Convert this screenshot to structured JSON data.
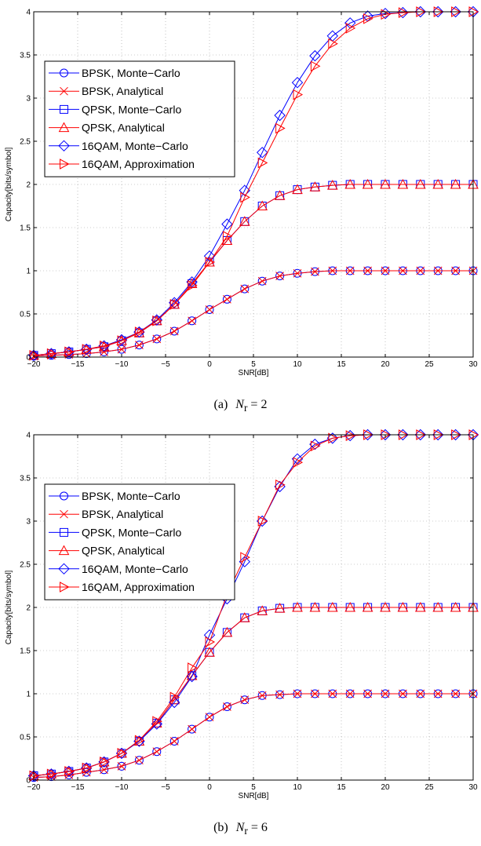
{
  "colors": {
    "blue": "#0000ff",
    "red": "#ff0000",
    "grid": "#9a9a9a"
  },
  "chart_data": [
    {
      "type": "line",
      "caption_label": "(a)",
      "caption_eq": "N",
      "caption_sub": "r",
      "caption_rhs": " = 2",
      "xlabel": "SNR[dB]",
      "ylabel": "Capacity[bits/symbol]",
      "xlim": [
        -20,
        30
      ],
      "ylim": [
        0,
        4
      ],
      "xticks": [
        -20,
        -15,
        -10,
        -5,
        0,
        5,
        10,
        15,
        20,
        25,
        30
      ],
      "yticks": [
        0,
        0.5,
        1,
        1.5,
        2,
        2.5,
        3,
        3.5,
        4
      ],
      "grid": true,
      "legend_position": "upper-left",
      "x": [
        -20,
        -18,
        -16,
        -14,
        -12,
        -10,
        -8,
        -6,
        -4,
        -2,
        0,
        2,
        4,
        6,
        8,
        10,
        12,
        14,
        16,
        18,
        20,
        22,
        24,
        26,
        28,
        30
      ],
      "series": [
        {
          "name": "BPSK, Monte−Carlo",
          "color": "blue",
          "marker": "circle",
          "values": [
            0.01,
            0.02,
            0.03,
            0.04,
            0.06,
            0.09,
            0.14,
            0.21,
            0.3,
            0.42,
            0.55,
            0.67,
            0.79,
            0.88,
            0.94,
            0.97,
            0.99,
            1.0,
            1.0,
            1.0,
            1.0,
            1.0,
            1.0,
            1.0,
            1.0,
            1.0
          ]
        },
        {
          "name": "BPSK, Analytical",
          "color": "red",
          "marker": "x",
          "values": [
            0.01,
            0.02,
            0.03,
            0.04,
            0.06,
            0.09,
            0.14,
            0.21,
            0.3,
            0.42,
            0.55,
            0.67,
            0.79,
            0.88,
            0.94,
            0.97,
            0.99,
            1.0,
            1.0,
            1.0,
            1.0,
            1.0,
            1.0,
            1.0,
            1.0,
            1.0
          ]
        },
        {
          "name": "QPSK, Monte−Carlo",
          "color": "blue",
          "marker": "square",
          "values": [
            0.02,
            0.04,
            0.06,
            0.09,
            0.12,
            0.19,
            0.28,
            0.42,
            0.61,
            0.85,
            1.1,
            1.35,
            1.57,
            1.75,
            1.87,
            1.94,
            1.97,
            1.99,
            2.0,
            2.0,
            2.0,
            2.0,
            2.0,
            2.0,
            2.0,
            2.0
          ]
        },
        {
          "name": "QPSK, Analytical",
          "color": "red",
          "marker": "triangle-up",
          "values": [
            0.02,
            0.04,
            0.06,
            0.09,
            0.12,
            0.19,
            0.28,
            0.42,
            0.61,
            0.85,
            1.1,
            1.35,
            1.57,
            1.75,
            1.87,
            1.94,
            1.97,
            1.99,
            2.0,
            2.0,
            2.0,
            2.0,
            2.0,
            2.0,
            2.0,
            2.0
          ]
        },
        {
          "name": "16QAM, Monte−Carlo",
          "color": "blue",
          "marker": "diamond",
          "values": [
            0.02,
            0.04,
            0.06,
            0.09,
            0.13,
            0.2,
            0.29,
            0.43,
            0.63,
            0.87,
            1.17,
            1.54,
            1.93,
            2.37,
            2.8,
            3.18,
            3.49,
            3.72,
            3.87,
            3.95,
            3.98,
            3.99,
            4.0,
            4.0,
            4.0,
            4.0
          ]
        },
        {
          "name": "16QAM, Approximation",
          "color": "red",
          "marker": "triangle-right",
          "values": [
            0.02,
            0.04,
            0.06,
            0.09,
            0.13,
            0.19,
            0.29,
            0.42,
            0.61,
            0.83,
            1.1,
            1.4,
            1.85,
            2.25,
            2.65,
            3.04,
            3.37,
            3.63,
            3.81,
            3.92,
            3.97,
            3.99,
            4.0,
            4.0,
            4.0,
            4.0
          ]
        }
      ]
    },
    {
      "type": "line",
      "caption_label": "(b)",
      "caption_eq": "N",
      "caption_sub": "r",
      "caption_rhs": " = 6",
      "xlabel": "SNR[dB]",
      "ylabel": "Capacity[bits/symbol]",
      "xlim": [
        -20,
        30
      ],
      "ylim": [
        0,
        4
      ],
      "xticks": [
        -20,
        -15,
        -10,
        -5,
        0,
        5,
        10,
        15,
        20,
        25,
        30
      ],
      "yticks": [
        0,
        0.5,
        1,
        1.5,
        2,
        2.5,
        3,
        3.5,
        4
      ],
      "grid": true,
      "legend_position": "upper-left",
      "x": [
        -20,
        -18,
        -16,
        -14,
        -12,
        -10,
        -8,
        -6,
        -4,
        -2,
        0,
        2,
        4,
        6,
        8,
        10,
        12,
        14,
        16,
        18,
        20,
        22,
        24,
        26,
        28,
        30
      ],
      "series": [
        {
          "name": "BPSK, Monte−Carlo",
          "color": "blue",
          "marker": "circle",
          "values": [
            0.03,
            0.04,
            0.06,
            0.09,
            0.12,
            0.16,
            0.23,
            0.33,
            0.45,
            0.59,
            0.73,
            0.85,
            0.93,
            0.98,
            0.99,
            1.0,
            1.0,
            1.0,
            1.0,
            1.0,
            1.0,
            1.0,
            1.0,
            1.0,
            1.0,
            1.0
          ]
        },
        {
          "name": "BPSK, Analytical",
          "color": "red",
          "marker": "x",
          "values": [
            0.03,
            0.04,
            0.06,
            0.09,
            0.12,
            0.16,
            0.23,
            0.33,
            0.45,
            0.59,
            0.73,
            0.85,
            0.93,
            0.98,
            0.99,
            1.0,
            1.0,
            1.0,
            1.0,
            1.0,
            1.0,
            1.0,
            1.0,
            1.0,
            1.0,
            1.0
          ]
        },
        {
          "name": "QPSK, Monte−Carlo",
          "color": "blue",
          "marker": "square",
          "values": [
            0.05,
            0.07,
            0.1,
            0.14,
            0.21,
            0.31,
            0.45,
            0.66,
            0.93,
            1.21,
            1.48,
            1.71,
            1.88,
            1.96,
            1.99,
            2.0,
            2.0,
            2.0,
            2.0,
            2.0,
            2.0,
            2.0,
            2.0,
            2.0,
            2.0,
            2.0
          ]
        },
        {
          "name": "QPSK, Analytical",
          "color": "red",
          "marker": "triangle-up",
          "values": [
            0.05,
            0.07,
            0.1,
            0.14,
            0.21,
            0.31,
            0.45,
            0.66,
            0.93,
            1.21,
            1.48,
            1.71,
            1.88,
            1.96,
            1.99,
            2.0,
            2.0,
            2.0,
            2.0,
            2.0,
            2.0,
            2.0,
            2.0,
            2.0,
            2.0,
            2.0
          ]
        },
        {
          "name": "16QAM, Monte−Carlo",
          "color": "blue",
          "marker": "diamond",
          "values": [
            0.05,
            0.07,
            0.1,
            0.14,
            0.21,
            0.31,
            0.45,
            0.65,
            0.9,
            1.2,
            1.68,
            2.1,
            2.53,
            3.0,
            3.4,
            3.72,
            3.89,
            3.96,
            3.99,
            4.0,
            4.0,
            4.0,
            4.0,
            4.0,
            4.0,
            4.0
          ]
        },
        {
          "name": "16QAM, Approximation",
          "color": "red",
          "marker": "triangle-right",
          "values": [
            0.05,
            0.07,
            0.1,
            0.14,
            0.21,
            0.31,
            0.46,
            0.68,
            0.96,
            1.3,
            1.6,
            2.15,
            2.58,
            3.0,
            3.42,
            3.68,
            3.87,
            3.96,
            3.99,
            4.0,
            4.0,
            4.0,
            4.0,
            4.0,
            4.0,
            4.0
          ]
        }
      ]
    }
  ]
}
